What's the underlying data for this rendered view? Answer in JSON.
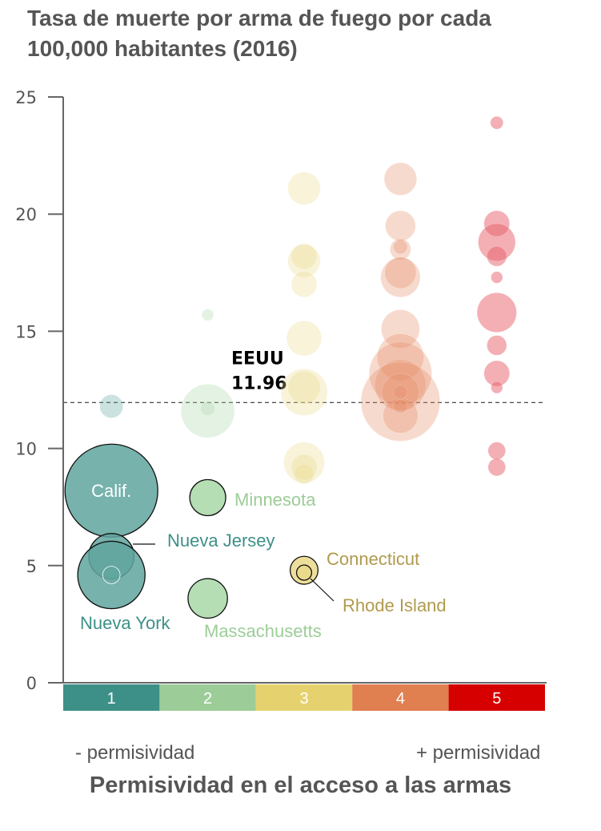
{
  "chart_data": {
    "type": "bubble",
    "title": "Tasa de muerte por arma de fuego por cada 100,000 habitantes (2016)",
    "xlabel": "Permisividad en el acceso a las armas",
    "x_low_label": "- permisividad",
    "x_high_label": "+ permisividad",
    "ylabel": "",
    "ylim": [
      0,
      25
    ],
    "yticks": [
      "0",
      "5",
      "10",
      "15",
      "20",
      "25"
    ],
    "grid": false,
    "categories": [
      {
        "label": "1",
        "color": "#3d9087",
        "bubble_color": "#5fa59e"
      },
      {
        "label": "2",
        "color": "#9ccd98",
        "bubble_color": "#a8d8a8"
      },
      {
        "label": "3",
        "color": "#e5d26f",
        "bubble_color": "#ead98a"
      },
      {
        "label": "4",
        "color": "#e07f50",
        "bubble_color": "#e58c68"
      },
      {
        "label": "5",
        "color": "#d60000",
        "bubble_color": "#e8606a"
      }
    ],
    "reference_line": {
      "label": "EEUU",
      "value": 11.96,
      "value_label": "11.96"
    },
    "points": [
      {
        "category": 1,
        "y": 11.8,
        "size": 1.0
      },
      {
        "category": 1,
        "y": 8.2,
        "size": 4.0,
        "highlight": true,
        "label": "Calif."
      },
      {
        "category": 1,
        "y": 5.4,
        "size": 1.95,
        "highlight": true,
        "label": "Nueva Jersey"
      },
      {
        "category": 1,
        "y": 4.6,
        "size": 2.9,
        "highlight": true,
        "label": "Nueva York"
      },
      {
        "category": 1,
        "y": 4.6,
        "size": 0.75,
        "inner": true
      },
      {
        "category": 2,
        "y": 15.7,
        "size": 0.5
      },
      {
        "category": 2,
        "y": 11.6,
        "size": 2.3
      },
      {
        "category": 2,
        "y": 11.7,
        "size": 0.6
      },
      {
        "category": 2,
        "y": 7.9,
        "size": 1.55,
        "highlight": true,
        "label": "Minnesota"
      },
      {
        "category": 2,
        "y": 3.6,
        "size": 1.7,
        "highlight": true,
        "label": "Massachusetts"
      },
      {
        "category": 3,
        "y": 21.1,
        "size": 1.4
      },
      {
        "category": 3,
        "y": 18.0,
        "size": 1.4
      },
      {
        "category": 3,
        "y": 18.2,
        "size": 1.1
      },
      {
        "category": 3,
        "y": 17.0,
        "size": 1.1
      },
      {
        "category": 3,
        "y": 14.7,
        "size": 1.5
      },
      {
        "category": 3,
        "y": 12.4,
        "size": 2.0
      },
      {
        "category": 3,
        "y": 12.6,
        "size": 1.4
      },
      {
        "category": 3,
        "y": 9.4,
        "size": 1.75
      },
      {
        "category": 3,
        "y": 9.2,
        "size": 1.1
      },
      {
        "category": 3,
        "y": 8.9,
        "size": 0.85
      },
      {
        "category": 3,
        "y": 4.8,
        "size": 1.2,
        "highlight": true,
        "label": "Connecticut"
      },
      {
        "category": 3,
        "y": 4.7,
        "size": 0.65,
        "highlight": true,
        "label": "Rhode Island"
      },
      {
        "category": 4,
        "y": 21.5,
        "size": 1.4
      },
      {
        "category": 4,
        "y": 19.5,
        "size": 1.3
      },
      {
        "category": 4,
        "y": 18.5,
        "size": 0.9
      },
      {
        "category": 4,
        "y": 18.6,
        "size": 0.6
      },
      {
        "category": 4,
        "y": 17.3,
        "size": 1.7
      },
      {
        "category": 4,
        "y": 17.5,
        "size": 1.35
      },
      {
        "category": 4,
        "y": 15.1,
        "size": 1.65
      },
      {
        "category": 4,
        "y": 13.9,
        "size": 2.0
      },
      {
        "category": 4,
        "y": 13.2,
        "size": 2.7
      },
      {
        "category": 4,
        "y": 12.7,
        "size": 2.2
      },
      {
        "category": 4,
        "y": 12.0,
        "size": 3.4
      },
      {
        "category": 4,
        "y": 12.4,
        "size": 1.6
      },
      {
        "category": 4,
        "y": 11.4,
        "size": 1.5
      },
      {
        "category": 4,
        "y": 12.4,
        "size": 0.6
      },
      {
        "category": 4,
        "y": 11.8,
        "size": 0.6
      },
      {
        "category": 5,
        "y": 23.9,
        "size": 0.55
      },
      {
        "category": 5,
        "y": 19.6,
        "size": 1.1
      },
      {
        "category": 5,
        "y": 18.8,
        "size": 1.6
      },
      {
        "category": 5,
        "y": 18.2,
        "size": 0.85
      },
      {
        "category": 5,
        "y": 17.3,
        "size": 0.5
      },
      {
        "category": 5,
        "y": 15.8,
        "size": 1.7
      },
      {
        "category": 5,
        "y": 14.4,
        "size": 0.85
      },
      {
        "category": 5,
        "y": 13.2,
        "size": 1.1
      },
      {
        "category": 5,
        "y": 12.6,
        "size": 0.5
      },
      {
        "category": 5,
        "y": 9.9,
        "size": 0.75
      },
      {
        "category": 5,
        "y": 9.2,
        "size": 0.75
      }
    ]
  }
}
